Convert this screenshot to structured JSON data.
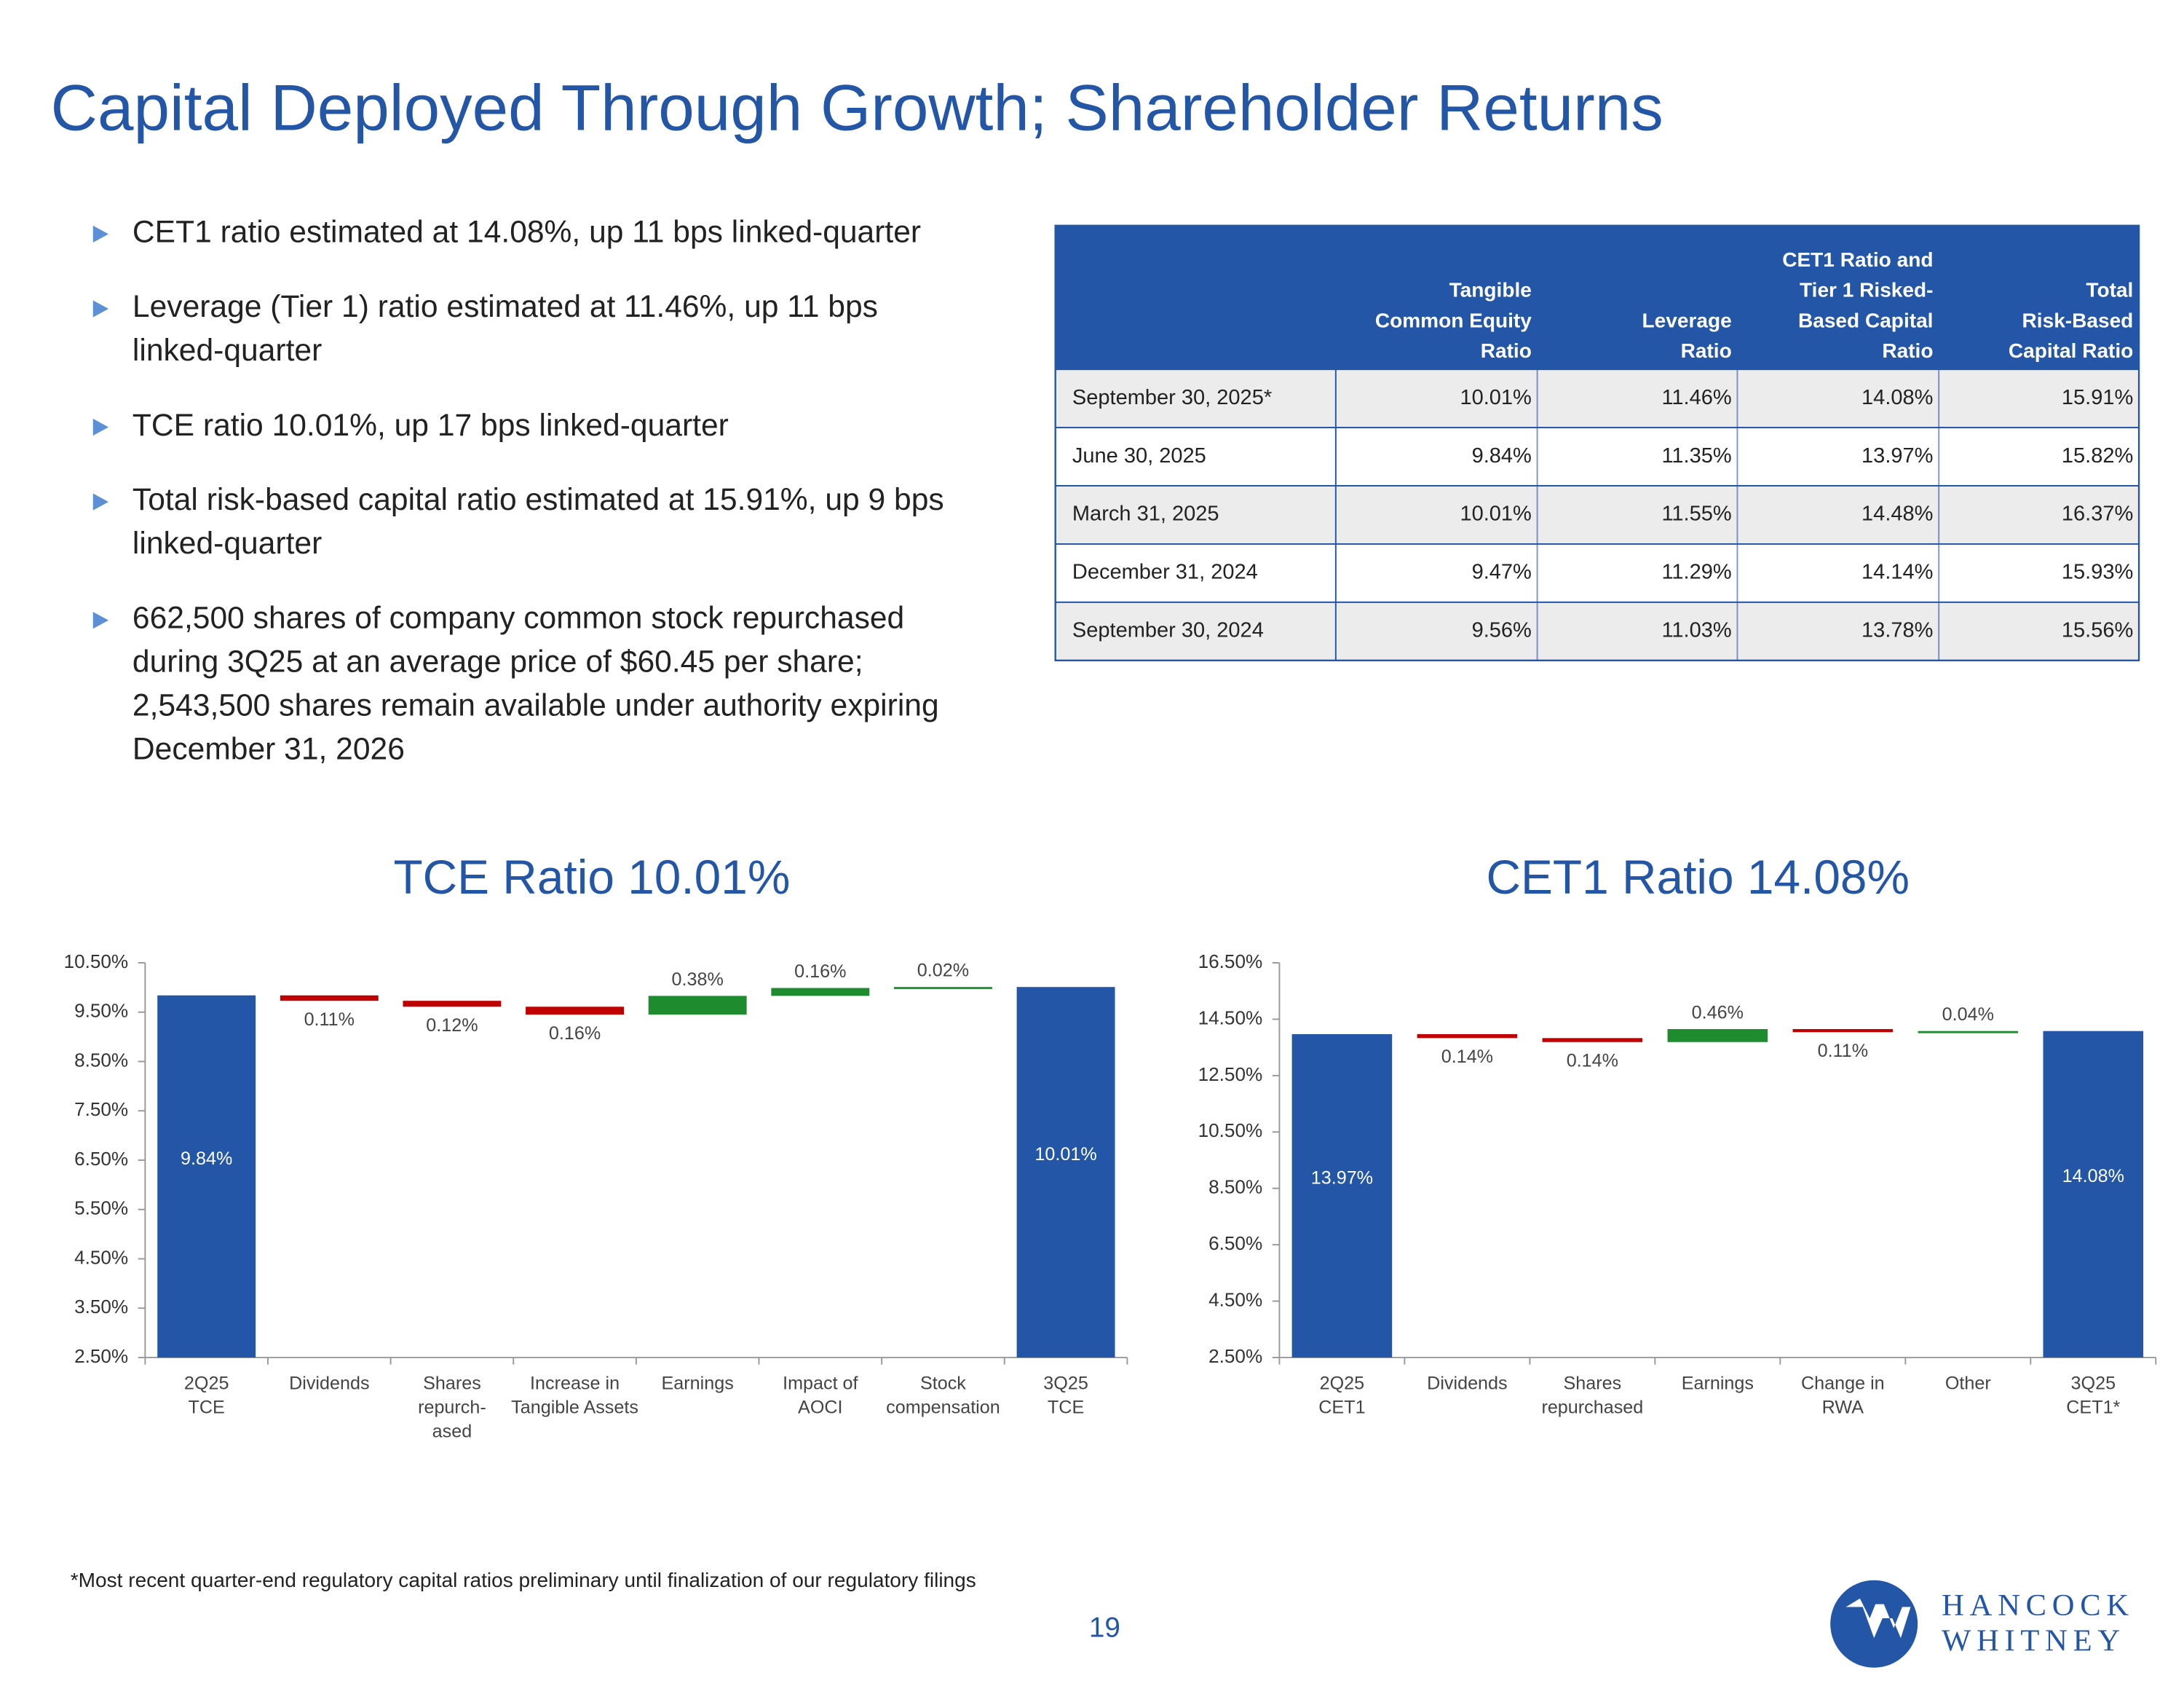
{
  "title": "Capital Deployed Through Growth; Shareholder Returns",
  "bullets": [
    "CET1 ratio estimated at 14.08%, up 11 bps linked-quarter",
    "Leverage (Tier 1) ratio estimated at 11.46%, up 11 bps\nlinked-quarter",
    "TCE ratio 10.01%, up 17 bps linked-quarter",
    "Total risk-based capital ratio estimated at 15.91%, up 9 bps\nlinked-quarter",
    "662,500 shares of company common stock repurchased\nduring 3Q25 at an average price of $60.45 per share;\n2,543,500 shares remain available under authority expiring\nDecember 31, 2026"
  ],
  "table": {
    "headers": [
      "Tangible\nCommon Equity\nRatio",
      "Leverage\nRatio",
      "CET1 Ratio and\nTier 1 Risked-\nBased Capital\nRatio",
      "Total\nRisk-Based\nCapital Ratio"
    ],
    "rows": [
      [
        "September 30, 2025*",
        "10.01%",
        "11.46%",
        "14.08%",
        "15.91%"
      ],
      [
        "June 30, 2025",
        "9.84%",
        "11.35%",
        "13.97%",
        "15.82%"
      ],
      [
        "March 31, 2025",
        "10.01%",
        "11.55%",
        "14.48%",
        "16.37%"
      ],
      [
        "December 31, 2024",
        "9.47%",
        "11.29%",
        "14.14%",
        "15.93%"
      ],
      [
        "September 30, 2024",
        "9.56%",
        "11.03%",
        "13.78%",
        "15.56%"
      ]
    ]
  },
  "chart_data": [
    {
      "type": "waterfall",
      "title": "TCE Ratio 10.01%",
      "categories": [
        "2Q25\nTCE",
        "Dividends",
        "Shares\nrepurch-\nased",
        "Increase in\nTangible Assets",
        "Earnings",
        "Impact of\nAOCI",
        "Stock\ncompensation",
        "3Q25\nTCE"
      ],
      "measures": [
        "total",
        "relative",
        "relative",
        "relative",
        "relative",
        "relative",
        "relative",
        "total"
      ],
      "values": [
        9.84,
        -0.11,
        -0.12,
        -0.16,
        0.38,
        0.16,
        0.02,
        10.01
      ],
      "value_labels": [
        "9.84%",
        "0.11%",
        "0.12%",
        "0.16%",
        "0.38%",
        "0.16%",
        "0.02%",
        "10.01%"
      ],
      "total_color": "#2356a6",
      "decrease_color": "#c00000",
      "increase_color": "#1e8c2e",
      "ylim": [
        2.5,
        10.5
      ],
      "yticks": [
        {
          "value": 2.5,
          "label": "2.50%"
        },
        {
          "value": 3.5,
          "label": "3.50%"
        },
        {
          "value": 4.5,
          "label": "4.50%"
        },
        {
          "value": 5.5,
          "label": "5.50%"
        },
        {
          "value": 6.5,
          "label": "6.50%"
        },
        {
          "value": 7.5,
          "label": "7.50%"
        },
        {
          "value": 8.5,
          "label": "8.50%"
        },
        {
          "value": 9.5,
          "label": "9.50%"
        },
        {
          "value": 10.5,
          "label": "10.50%"
        }
      ],
      "grid": false
    },
    {
      "type": "waterfall",
      "title": "CET1 Ratio 14.08%",
      "categories": [
        "2Q25\nCET1",
        "Dividends",
        "Shares\nrepurchased",
        "Earnings",
        "Change in\nRWA",
        "Other",
        "3Q25\nCET1*"
      ],
      "measures": [
        "total",
        "relative",
        "relative",
        "relative",
        "relative",
        "relative",
        "total"
      ],
      "values": [
        13.97,
        -0.14,
        -0.14,
        0.46,
        -0.11,
        0.04,
        14.08
      ],
      "value_labels": [
        "13.97%",
        "0.14%",
        "0.14%",
        "0.46%",
        "0.11%",
        "0.04%",
        "14.08%"
      ],
      "total_color": "#2356a6",
      "decrease_color": "#c00000",
      "increase_color": "#1e8c2e",
      "ylim": [
        2.5,
        16.5
      ],
      "yticks": [
        {
          "value": 2.5,
          "label": "2.50%"
        },
        {
          "value": 4.5,
          "label": "4.50%"
        },
        {
          "value": 6.5,
          "label": "6.50%"
        },
        {
          "value": 8.5,
          "label": "8.50%"
        },
        {
          "value": 10.5,
          "label": "10.50%"
        },
        {
          "value": 12.5,
          "label": "12.50%"
        },
        {
          "value": 14.5,
          "label": "14.50%"
        },
        {
          "value": 16.5,
          "label": "16.50%"
        }
      ],
      "grid": false
    }
  ],
  "footnote": "*Most recent quarter-end regulatory capital ratios preliminary until finalization of our regulatory filings",
  "page_number": "19",
  "logo": [
    "HANCOCK",
    "WHITNEY"
  ]
}
